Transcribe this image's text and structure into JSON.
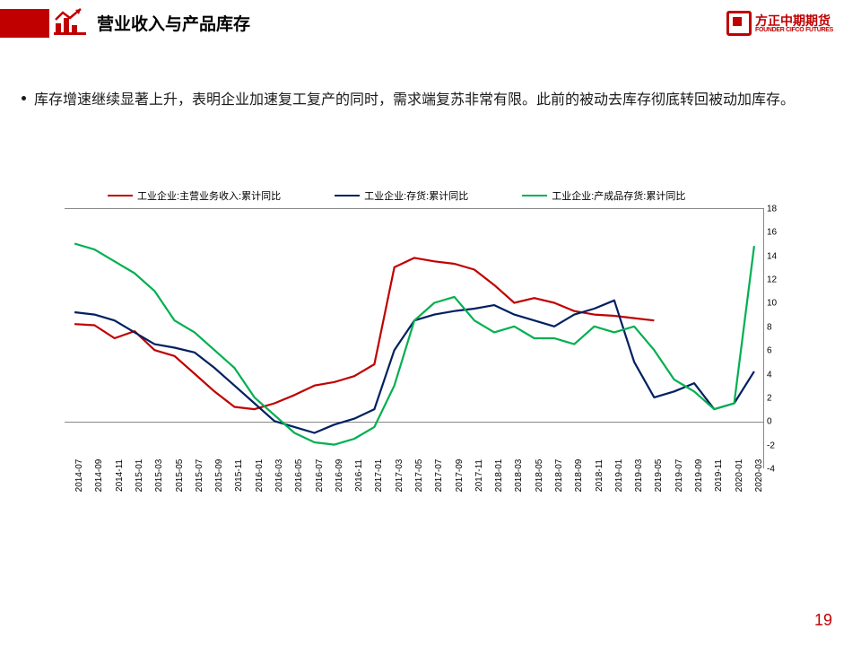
{
  "brand": {
    "cn": "方正中期期货",
    "en": "FOUNDER CIFCO FUTURES"
  },
  "title": "营业收入与产品库存",
  "paragraph": "库存增速继续显著上升，表明企业加速复工复产的同时，需求端复苏非常有限。此前的被动去库存彻底转回被动加库存。",
  "page_number": "19",
  "chart": {
    "type": "line",
    "background_color": "#ffffff",
    "axis_color": "#888888",
    "tick_fontsize": 10,
    "legend_fontsize": 11,
    "line_width": 2.2,
    "ylim": [
      -4,
      18
    ],
    "ytick_step": 2,
    "yticks": [
      -4,
      -2,
      0,
      2,
      4,
      6,
      8,
      10,
      12,
      14,
      16,
      18
    ],
    "zero_line_y": 0,
    "x_labels": [
      "2014-07",
      "2014-09",
      "2014-11",
      "2015-01",
      "2015-03",
      "2015-05",
      "2015-07",
      "2015-09",
      "2015-11",
      "2016-01",
      "2016-03",
      "2016-05",
      "2016-07",
      "2016-09",
      "2016-11",
      "2017-01",
      "2017-03",
      "2017-05",
      "2017-07",
      "2017-09",
      "2017-11",
      "2018-01",
      "2018-03",
      "2018-05",
      "2018-07",
      "2018-09",
      "2018-11",
      "2019-01",
      "2019-03",
      "2019-05",
      "2019-07",
      "2019-09",
      "2019-11",
      "2020-01",
      "2020-03"
    ],
    "series": [
      {
        "label": "工业企业:主营业务收入:累计同比",
        "color": "#c00000",
        "values": [
          8.2,
          8.1,
          7.0,
          7.6,
          6.0,
          5.5,
          4.0,
          2.5,
          1.2,
          1.0,
          1.5,
          2.2,
          3.0,
          3.3,
          3.8,
          4.8,
          13.0,
          13.8,
          13.5,
          13.3,
          12.8,
          11.5,
          10.0,
          10.4,
          10.0,
          9.3,
          9.0,
          8.9,
          8.7,
          8.5,
          null,
          null,
          null,
          null,
          null
        ]
      },
      {
        "label": "工业企业:存货:累计同比",
        "color": "#002060",
        "values": [
          9.2,
          9.0,
          8.5,
          7.5,
          6.5,
          6.2,
          5.8,
          4.5,
          3.0,
          1.5,
          0.0,
          -0.5,
          -1.0,
          -0.3,
          0.2,
          1.0,
          6.0,
          8.5,
          9.0,
          9.3,
          9.5,
          9.8,
          9.0,
          8.5,
          8.0,
          9.0,
          9.5,
          10.2,
          5.0,
          2.0,
          2.5,
          3.2,
          1.0,
          1.5,
          4.2
        ]
      },
      {
        "label": "工业企业:产成品存货:累计同比",
        "color": "#00b050",
        "values": [
          15.0,
          14.5,
          13.5,
          12.5,
          11.0,
          8.5,
          7.5,
          6.0,
          4.5,
          2.0,
          0.5,
          -1.0,
          -1.8,
          -2.0,
          -1.5,
          -0.5,
          3.0,
          8.5,
          10.0,
          10.5,
          8.5,
          7.5,
          8.0,
          7.0,
          7.0,
          6.5,
          8.0,
          7.5,
          8.0,
          6.0,
          3.5,
          2.5,
          1.0,
          1.5,
          14.8
        ]
      }
    ]
  }
}
